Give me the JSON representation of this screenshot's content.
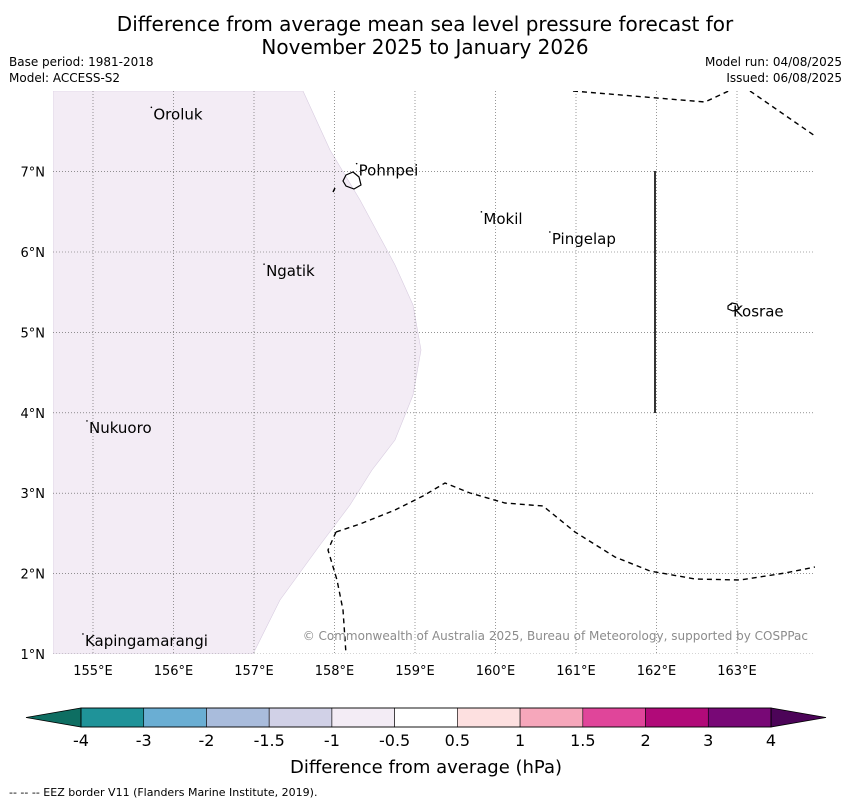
{
  "title": {
    "line1": "Difference from average mean sea level pressure forecast for",
    "line2": "November 2025 to January 2026"
  },
  "meta": {
    "base_period": "Base period: 1981-2018",
    "model": "Model: ACCESS-S2",
    "model_run": "Model run: 04/08/2025",
    "issued": "Issued: 06/08/2025"
  },
  "map": {
    "lon_labels": [
      "155°E",
      "156°E",
      "157°E",
      "158°E",
      "159°E",
      "160°E",
      "161°E",
      "162°E",
      "163°E"
    ],
    "lat_labels": [
      "1°N",
      "2°N",
      "3°N",
      "4°N",
      "5°N",
      "6°N",
      "7°N"
    ],
    "places": [
      {
        "name": "Oroluk",
        "lon": 155.75,
        "lat": 7.65
      },
      {
        "name": "Pohnpei",
        "lon": 158.3,
        "lat": 6.95
      },
      {
        "name": "Mokil",
        "lon": 159.85,
        "lat": 6.35
      },
      {
        "name": "Pingelap",
        "lon": 160.7,
        "lat": 6.1
      },
      {
        "name": "Ngatik",
        "lon": 157.15,
        "lat": 5.7
      },
      {
        "name": "Kosrae",
        "lon": 162.95,
        "lat": 5.2
      },
      {
        "name": "Nukuoro",
        "lon": 154.95,
        "lat": 3.75
      },
      {
        "name": "Kapingamarangi",
        "lon": 154.9,
        "lat": 1.1
      }
    ],
    "copyright": "© Commonwealth of Australia 2025, Bureau of Meteorology, supported by COSPPac",
    "anomaly_fill_color": "#f3ecf5"
  },
  "colorbar": {
    "ticks": [
      "-4",
      "-3",
      "-2",
      "-1.5",
      "-1",
      "-0.5",
      "0.5",
      "1",
      "1.5",
      "2",
      "3",
      "4"
    ],
    "colors": [
      "#1f9399",
      "#6aaed3",
      "#a9bcdc",
      "#d1d1e7",
      "#f3ecf5",
      "#ffffff",
      "#fde0e0",
      "#f6a7bb",
      "#e0459a",
      "#b10a79",
      "#780876"
    ],
    "low_extend_color": "#0e6e62",
    "high_extend_color": "#4c0458",
    "label": "Difference from average (hPa)"
  },
  "footer": "--  --  -- EEZ border V11 (Flanders Marine Institute, 2019)."
}
